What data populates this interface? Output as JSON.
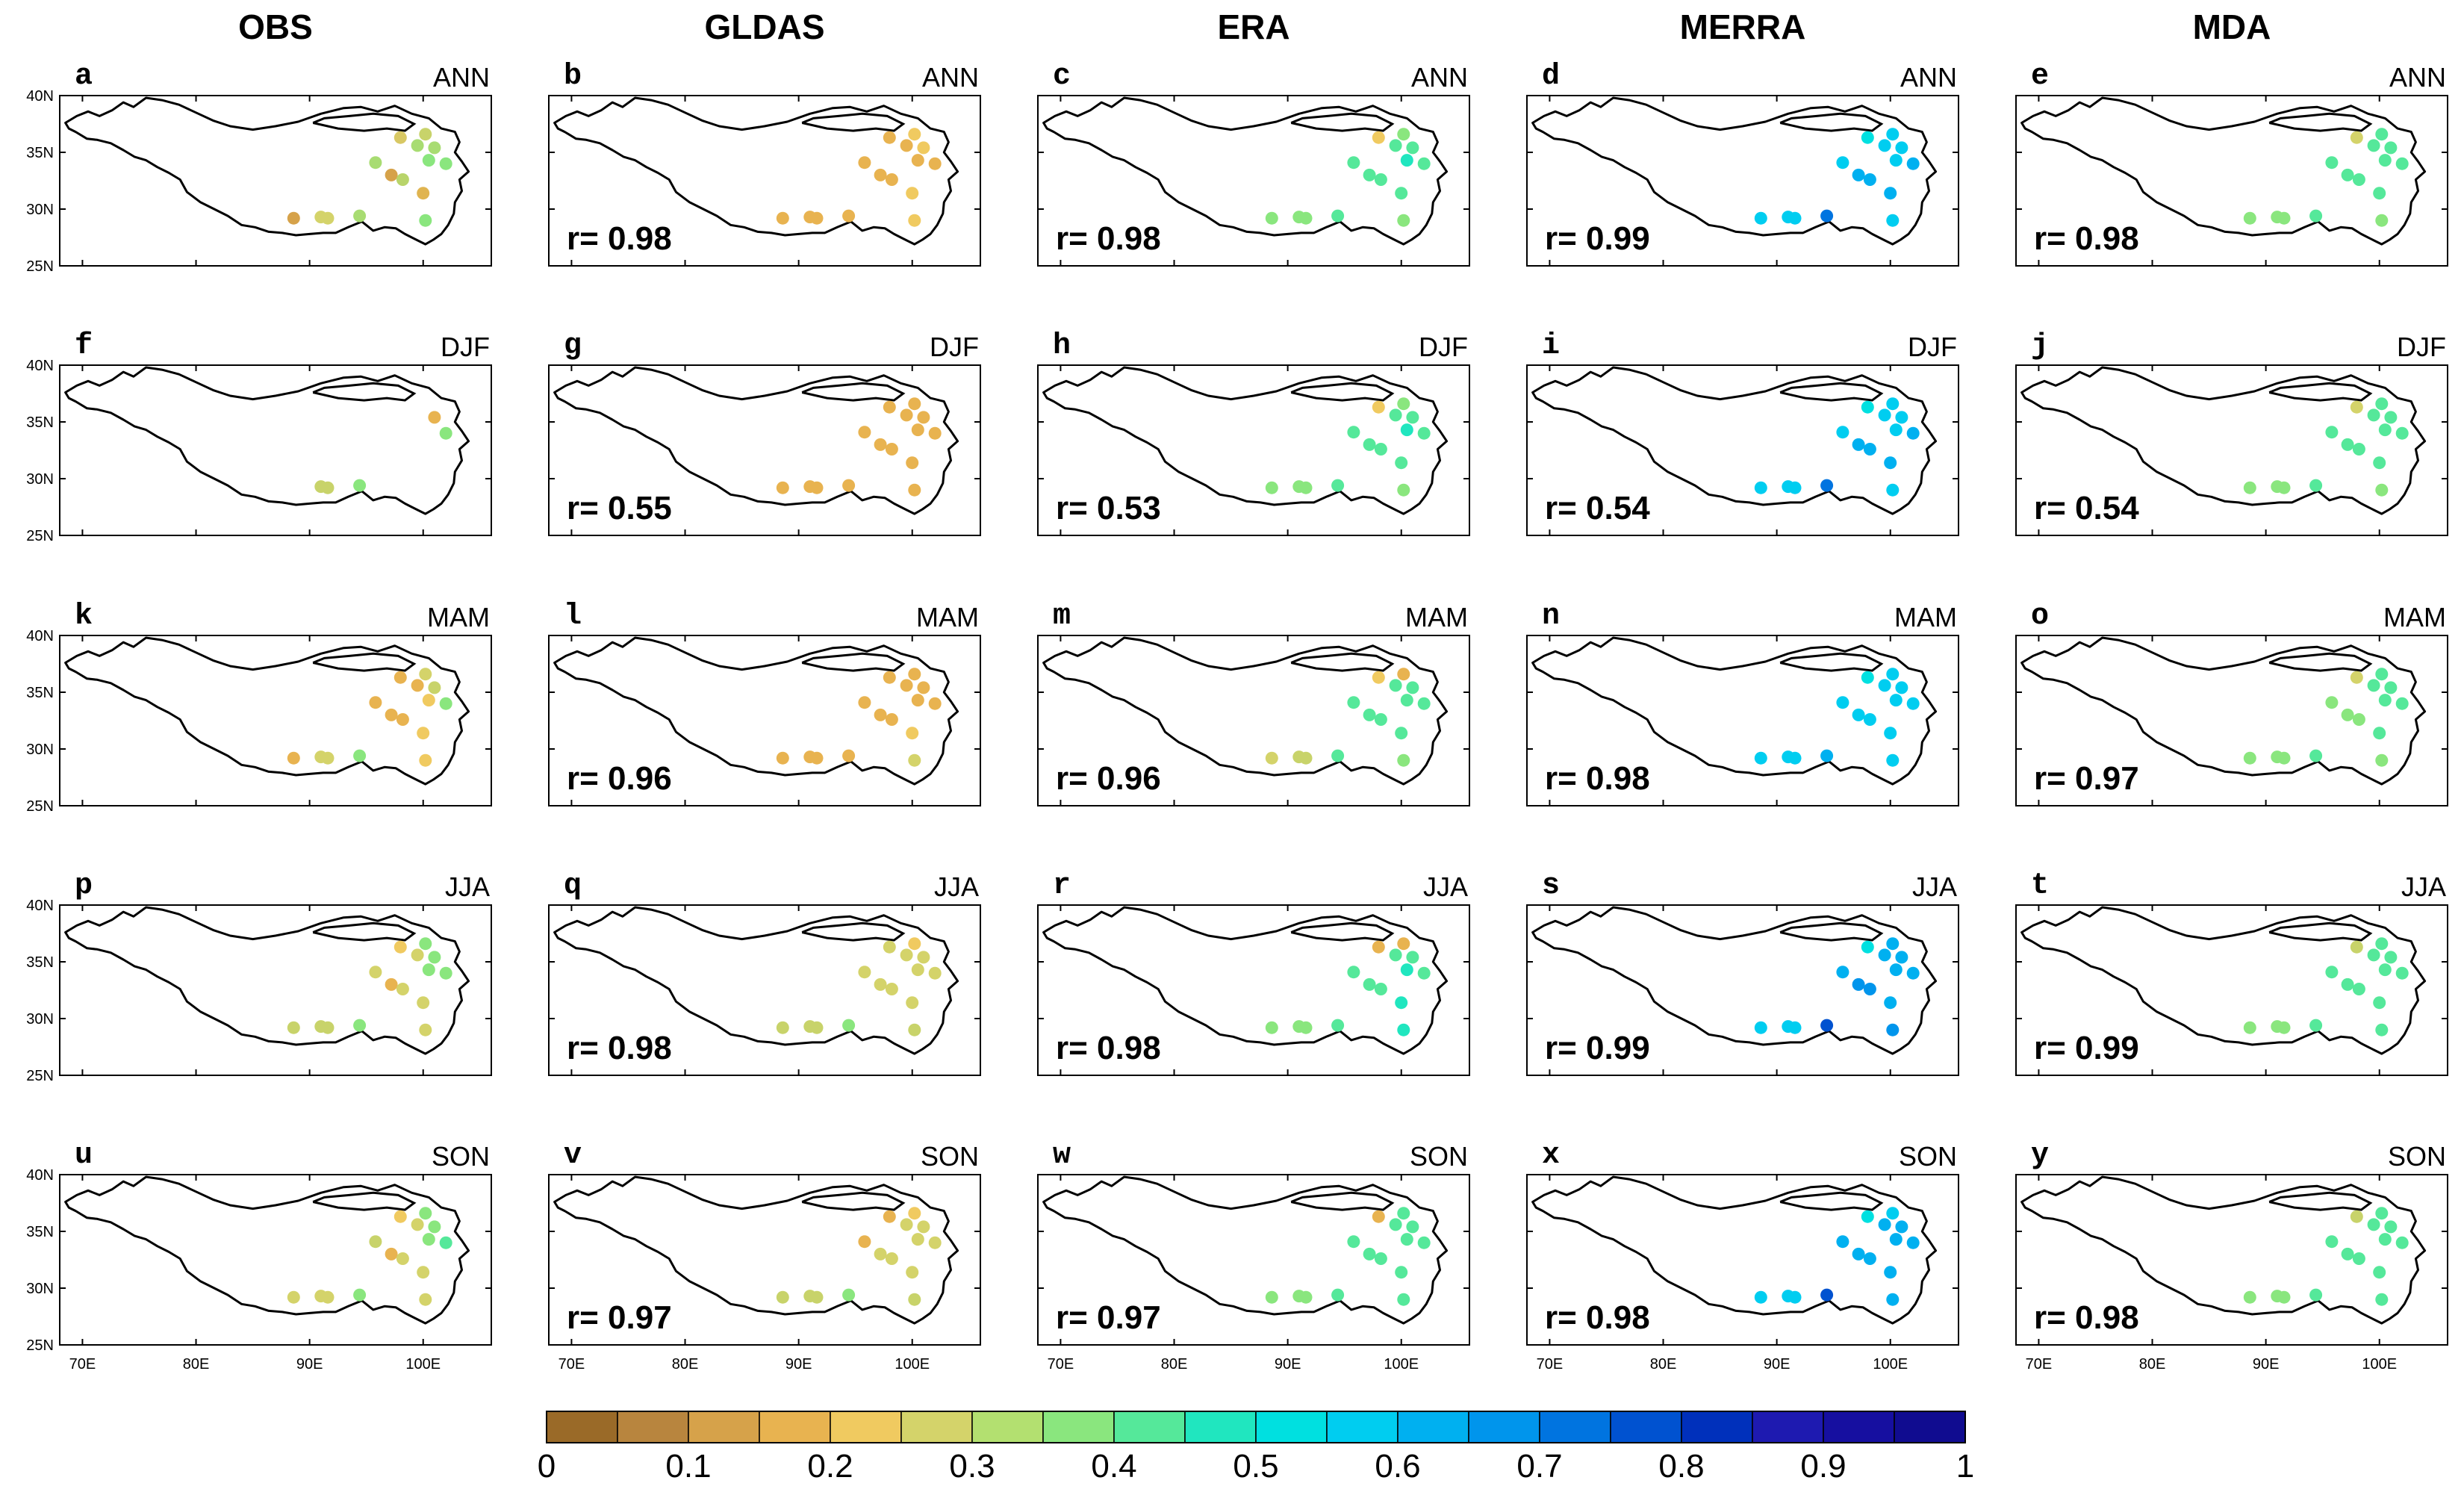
{
  "columns": [
    "OBS",
    "GLDAS",
    "ERA",
    "MERRA",
    "MDA"
  ],
  "rows": [
    "ANN",
    "DJF",
    "MAM",
    "JJA",
    "SON"
  ],
  "panel_letters": [
    "a",
    "b",
    "c",
    "d",
    "e",
    "f",
    "g",
    "h",
    "i",
    "j",
    "k",
    "l",
    "m",
    "n",
    "o",
    "p",
    "q",
    "r",
    "s",
    "t",
    "u",
    "v",
    "w",
    "x",
    "y"
  ],
  "correlations": [
    [
      null,
      "r= 0.98",
      "r= 0.98",
      "r= 0.99",
      "r= 0.98"
    ],
    [
      null,
      "r= 0.55",
      "r= 0.53",
      "r= 0.54",
      "r= 0.54"
    ],
    [
      null,
      "r= 0.96",
      "r= 0.96",
      "r= 0.98",
      "r= 0.97"
    ],
    [
      null,
      "r= 0.98",
      "r= 0.98",
      "r= 0.99",
      "r= 0.99"
    ],
    [
      null,
      "r= 0.97",
      "r= 0.97",
      "r= 0.98",
      "r= 0.98"
    ]
  ],
  "lat_ticks": [
    "40N",
    "35N",
    "30N",
    "25N"
  ],
  "lon_ticks": [
    "70E",
    "80E",
    "90E",
    "100E"
  ],
  "map_extent": {
    "lon": [
      68,
      106
    ],
    "lat": [
      25,
      40
    ]
  },
  "stations": [
    {
      "lon": 98.0,
      "lat": 36.3
    },
    {
      "lon": 100.2,
      "lat": 36.6
    },
    {
      "lon": 99.5,
      "lat": 35.6
    },
    {
      "lon": 101.0,
      "lat": 35.4
    },
    {
      "lon": 102.0,
      "lat": 34.0
    },
    {
      "lon": 100.5,
      "lat": 34.3
    },
    {
      "lon": 95.8,
      "lat": 34.1
    },
    {
      "lon": 97.2,
      "lat": 33.0
    },
    {
      "lon": 98.2,
      "lat": 32.6
    },
    {
      "lon": 100.0,
      "lat": 31.4
    },
    {
      "lon": 88.6,
      "lat": 29.2
    },
    {
      "lon": 91.0,
      "lat": 29.3
    },
    {
      "lon": 91.6,
      "lat": 29.2
    },
    {
      "lon": 94.4,
      "lat": 29.4
    },
    {
      "lon": 100.2,
      "lat": 29.0
    }
  ],
  "colorbar": {
    "colors": [
      "#9a6a28",
      "#b8853e",
      "#d6a24a",
      "#e8b350",
      "#f0ca60",
      "#d4d36a",
      "#b3e070",
      "#8ae67e",
      "#55e89a",
      "#20e6bf",
      "#00e0e0",
      "#00cdf0",
      "#00b0f0",
      "#0095ec",
      "#0074e0",
      "#0052d0",
      "#0030bb",
      "#1e1ab0",
      "#160fa0",
      "#100c90"
    ],
    "ticks": [
      "0",
      "0.1",
      "0.2",
      "0.3",
      "0.4",
      "0.5",
      "0.6",
      "0.7",
      "0.8",
      "0.9",
      "1"
    ]
  },
  "panel_colors": [
    [
      [
        "#d8c864",
        "#c8d36a",
        "#a8dc72",
        "#a8dc72",
        "#8ae67e",
        "#8ae67e",
        "#a8dc72",
        "#d6a24a",
        "#b8d46a",
        "#e0b450",
        "#d6a24a",
        "#d4d36a",
        "#d4d36a",
        "#a8dc72",
        "#8ae67e"
      ],
      [
        "#e8b350",
        "#f0ca60",
        "#e8b350",
        "#f0ca60",
        "#e8b350",
        "#e8b350",
        "#e8b350",
        "#e8b350",
        "#e8b350",
        "#f0ca60",
        "#e8b350",
        "#e8b350",
        "#e8b350",
        "#e8b350",
        "#f0ca60"
      ],
      [
        "#f0ca60",
        "#8ae67e",
        "#55e89a",
        "#55e89a",
        "#55e89a",
        "#20e6bf",
        "#55e89a",
        "#55e89a",
        "#55e89a",
        "#55e89a",
        "#8ae67e",
        "#8ae67e",
        "#8ae67e",
        "#55e89a",
        "#8ae67e"
      ],
      [
        "#00e0e0",
        "#00cdf0",
        "#00cdf0",
        "#00cdf0",
        "#00b0f0",
        "#00cdf0",
        "#00cdf0",
        "#00b0f0",
        "#00b0f0",
        "#00b0f0",
        "#00cdf0",
        "#00cdf0",
        "#00cdf0",
        "#0074e0",
        "#00cdf0"
      ],
      [
        "#d4d36a",
        "#55e89a",
        "#55e89a",
        "#55e89a",
        "#55e89a",
        "#55e89a",
        "#55e89a",
        "#55e89a",
        "#55e89a",
        "#55e89a",
        "#8ae67e",
        "#8ae67e",
        "#8ae67e",
        "#55e89a",
        "#8ae67e"
      ]
    ],
    [
      [
        null,
        null,
        null,
        "#e8b350",
        "#8ae67e",
        null,
        null,
        null,
        null,
        null,
        null,
        "#c8d36a",
        "#c8d36a",
        "#8ae67e",
        null
      ],
      [
        "#e8b350",
        "#e8b350",
        "#e8b350",
        "#e8b350",
        "#e8b350",
        "#e8b350",
        "#e8b350",
        "#e8b350",
        "#e8b350",
        "#e8b350",
        "#e8b350",
        "#e8b350",
        "#e8b350",
        "#e8b350",
        "#e8b350"
      ],
      [
        "#f0ca60",
        "#8ae67e",
        "#55e89a",
        "#55e89a",
        "#55e89a",
        "#20e6bf",
        "#55e89a",
        "#55e89a",
        "#55e89a",
        "#55e89a",
        "#8ae67e",
        "#8ae67e",
        "#8ae67e",
        "#55e89a",
        "#8ae67e"
      ],
      [
        "#00e0e0",
        "#00cdf0",
        "#00cdf0",
        "#00cdf0",
        "#00b0f0",
        "#00cdf0",
        "#00cdf0",
        "#00b0f0",
        "#00b0f0",
        "#00b0f0",
        "#00cdf0",
        "#00cdf0",
        "#00cdf0",
        "#0074e0",
        "#00cdf0"
      ],
      [
        "#d4d36a",
        "#55e89a",
        "#55e89a",
        "#55e89a",
        "#55e89a",
        "#55e89a",
        "#55e89a",
        "#55e89a",
        "#55e89a",
        "#55e89a",
        "#8ae67e",
        "#8ae67e",
        "#8ae67e",
        "#55e89a",
        "#8ae67e"
      ]
    ],
    [
      [
        "#e8b350",
        "#d4d36a",
        "#e8b350",
        "#c8d36a",
        "#8ae67e",
        "#f0ca60",
        "#e8b350",
        "#e8b350",
        "#e8b350",
        "#f0ca60",
        "#e8b350",
        "#d4d36a",
        "#d4d36a",
        "#8ae67e",
        "#f0ca60"
      ],
      [
        "#e8b350",
        "#e8b350",
        "#e8b350",
        "#e8b350",
        "#e8b350",
        "#e8b350",
        "#e8b350",
        "#e8b350",
        "#e8b350",
        "#f0ca60",
        "#e8b350",
        "#e8b350",
        "#e8b350",
        "#e8b350",
        "#d4d36a"
      ],
      [
        "#f0ca60",
        "#e8b350",
        "#55e89a",
        "#55e89a",
        "#55e89a",
        "#55e89a",
        "#55e89a",
        "#55e89a",
        "#55e89a",
        "#55e89a",
        "#d4d36a",
        "#c8d36a",
        "#c8d36a",
        "#55e89a",
        "#8ae67e"
      ],
      [
        "#00e0e0",
        "#00cdf0",
        "#00cdf0",
        "#00cdf0",
        "#00cdf0",
        "#00cdf0",
        "#00cdf0",
        "#00cdf0",
        "#00cdf0",
        "#00cdf0",
        "#00cdf0",
        "#00cdf0",
        "#00cdf0",
        "#00b0f0",
        "#00cdf0"
      ],
      [
        "#d4d36a",
        "#55e89a",
        "#55e89a",
        "#55e89a",
        "#55e89a",
        "#55e89a",
        "#8ae67e",
        "#8ae67e",
        "#8ae67e",
        "#55e89a",
        "#8ae67e",
        "#8ae67e",
        "#8ae67e",
        "#55e89a",
        "#8ae67e"
      ]
    ],
    [
      [
        "#f0ca60",
        "#8ae67e",
        "#d4d36a",
        "#8ae67e",
        "#8ae67e",
        "#8ae67e",
        "#d4d36a",
        "#e8b350",
        "#d4d36a",
        "#d4d36a",
        "#c8d36a",
        "#c8d36a",
        "#c8d36a",
        "#8ae67e",
        "#d4d36a"
      ],
      [
        "#d4d36a",
        "#f0ca60",
        "#d4d36a",
        "#d4d36a",
        "#d4d36a",
        "#d4d36a",
        "#d4d36a",
        "#d4d36a",
        "#d4d36a",
        "#d4d36a",
        "#c8d36a",
        "#c8d36a",
        "#c8d36a",
        "#8ae67e",
        "#c8d36a"
      ],
      [
        "#e8b350",
        "#e8b350",
        "#55e89a",
        "#55e89a",
        "#55e89a",
        "#20e6bf",
        "#55e89a",
        "#55e89a",
        "#55e89a",
        "#20e6bf",
        "#8ae67e",
        "#8ae67e",
        "#8ae67e",
        "#55e89a",
        "#20e6bf"
      ],
      [
        "#00e0e0",
        "#00b0f0",
        "#00b0f0",
        "#00b0f0",
        "#00b0f0",
        "#00b0f0",
        "#00b0f0",
        "#0095ec",
        "#0095ec",
        "#00b0f0",
        "#00cdf0",
        "#00cdf0",
        "#00cdf0",
        "#0052d0",
        "#0095ec"
      ],
      [
        "#c8d36a",
        "#55e89a",
        "#55e89a",
        "#55e89a",
        "#55e89a",
        "#55e89a",
        "#55e89a",
        "#55e89a",
        "#55e89a",
        "#55e89a",
        "#8ae67e",
        "#8ae67e",
        "#8ae67e",
        "#55e89a",
        "#55e89a"
      ]
    ],
    [
      [
        "#f0ca60",
        "#8ae67e",
        "#d4d36a",
        "#8ae67e",
        "#55e89a",
        "#8ae67e",
        "#c8d36a",
        "#e8b350",
        "#d4d36a",
        "#d4d36a",
        "#d4d36a",
        "#d4d36a",
        "#d4d36a",
        "#8ae67e",
        "#d4d36a"
      ],
      [
        "#e8b350",
        "#f0ca60",
        "#d4d36a",
        "#d4d36a",
        "#d4d36a",
        "#d4d36a",
        "#e8b350",
        "#d4d36a",
        "#d4d36a",
        "#d4d36a",
        "#c8d36a",
        "#c8d36a",
        "#c8d36a",
        "#8ae67e",
        "#c8d36a"
      ],
      [
        "#e8b350",
        "#55e89a",
        "#55e89a",
        "#55e89a",
        "#55e89a",
        "#55e89a",
        "#55e89a",
        "#55e89a",
        "#55e89a",
        "#55e89a",
        "#8ae67e",
        "#8ae67e",
        "#8ae67e",
        "#55e89a",
        "#55e89a"
      ],
      [
        "#00e0e0",
        "#00cdf0",
        "#00b0f0",
        "#00b0f0",
        "#00b0f0",
        "#00b0f0",
        "#00b0f0",
        "#00b0f0",
        "#00b0f0",
        "#00b0f0",
        "#00cdf0",
        "#00cdf0",
        "#00cdf0",
        "#0052d0",
        "#00b0f0"
      ],
      [
        "#c8d36a",
        "#55e89a",
        "#55e89a",
        "#55e89a",
        "#55e89a",
        "#55e89a",
        "#55e89a",
        "#55e89a",
        "#55e89a",
        "#55e89a",
        "#8ae67e",
        "#8ae67e",
        "#8ae67e",
        "#55e89a",
        "#55e89a"
      ]
    ]
  ]
}
